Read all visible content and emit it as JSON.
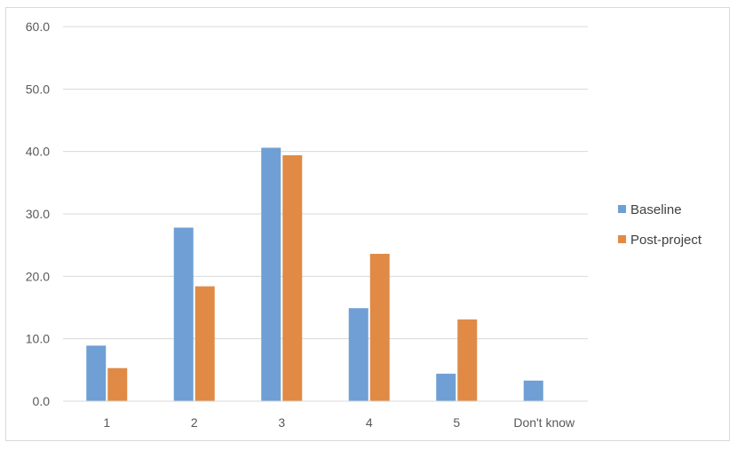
{
  "chart_data": {
    "type": "bar",
    "categories": [
      "1",
      "2",
      "3",
      "4",
      "5",
      "Don't know"
    ],
    "series": [
      {
        "name": "Baseline",
        "color": "#6f9fd4",
        "values": [
          8.9,
          27.8,
          40.6,
          14.9,
          4.4,
          3.3
        ]
      },
      {
        "name": "Post-project",
        "color": "#e08a46",
        "values": [
          5.3,
          18.4,
          39.4,
          23.6,
          13.1,
          null
        ]
      }
    ],
    "ylim": [
      0,
      60
    ],
    "yticks": [
      "0.0",
      "10.0",
      "20.0",
      "30.0",
      "40.0",
      "50.0",
      "60.0"
    ],
    "grid": true,
    "legend_position": "right"
  }
}
